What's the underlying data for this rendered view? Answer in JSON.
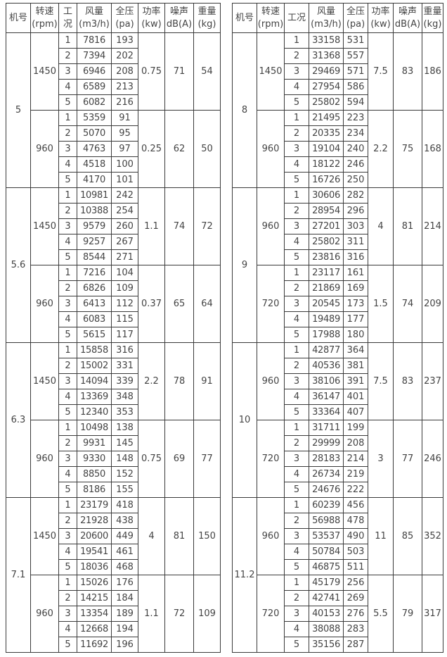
{
  "tables": [
    {
      "headers": [
        [
          "机号"
        ],
        [
          "转速",
          "(rpm)"
        ],
        [
          "工",
          "况"
        ],
        [
          "风量",
          "(m3/h)"
        ],
        [
          "全压",
          "(pa)"
        ],
        [
          "功率",
          "(kw)"
        ],
        [
          "噪声",
          "dB(A)"
        ],
        [
          "重量",
          "(kg)"
        ]
      ],
      "models": [
        {
          "model": "5",
          "speeds": [
            {
              "rpm": "1450",
              "power": "0.75",
              "noise": "71",
              "weight": "54",
              "points": [
                [
                  "1",
                  "7816",
                  "193"
                ],
                [
                  "2",
                  "7394",
                  "202"
                ],
                [
                  "3",
                  "6946",
                  "208"
                ],
                [
                  "4",
                  "6589",
                  "213"
                ],
                [
                  "5",
                  "6082",
                  "216"
                ]
              ]
            },
            {
              "rpm": "960",
              "power": "0.25",
              "noise": "62",
              "weight": "50",
              "points": [
                [
                  "1",
                  "5359",
                  "91"
                ],
                [
                  "2",
                  "5070",
                  "95"
                ],
                [
                  "3",
                  "4763",
                  "97"
                ],
                [
                  "4",
                  "4518",
                  "100"
                ],
                [
                  "5",
                  "4170",
                  "101"
                ]
              ]
            }
          ]
        },
        {
          "model": "5.6",
          "speeds": [
            {
              "rpm": "1450",
              "power": "1.1",
              "noise": "74",
              "weight": "72",
              "points": [
                [
                  "1",
                  "10981",
                  "242"
                ],
                [
                  "2",
                  "10388",
                  "254"
                ],
                [
                  "3",
                  "9579",
                  "260"
                ],
                [
                  "4",
                  "9257",
                  "267"
                ],
                [
                  "5",
                  "8544",
                  "271"
                ]
              ]
            },
            {
              "rpm": "960",
              "power": "0.37",
              "noise": "65",
              "weight": "64",
              "points": [
                [
                  "1",
                  "7216",
                  "104"
                ],
                [
                  "2",
                  "6826",
                  "109"
                ],
                [
                  "3",
                  "6413",
                  "112"
                ],
                [
                  "4",
                  "6083",
                  "115"
                ],
                [
                  "5",
                  "5615",
                  "117"
                ]
              ]
            }
          ]
        },
        {
          "model": "6.3",
          "speeds": [
            {
              "rpm": "1450",
              "power": "2.2",
              "noise": "78",
              "weight": "91",
              "points": [
                [
                  "1",
                  "15858",
                  "316"
                ],
                [
                  "2",
                  "15002",
                  "331"
                ],
                [
                  "3",
                  "14094",
                  "339"
                ],
                [
                  "4",
                  "13369",
                  "348"
                ],
                [
                  "5",
                  "12340",
                  "353"
                ]
              ]
            },
            {
              "rpm": "960",
              "power": "0.75",
              "noise": "69",
              "weight": "77",
              "points": [
                [
                  "1",
                  "10498",
                  "138"
                ],
                [
                  "2",
                  "9931",
                  "145"
                ],
                [
                  "3",
                  "9330",
                  "148"
                ],
                [
                  "4",
                  "8850",
                  "152"
                ],
                [
                  "5",
                  "8186",
                  "155"
                ]
              ]
            }
          ]
        },
        {
          "model": "7.1",
          "speeds": [
            {
              "rpm": "1450",
              "power": "4",
              "noise": "81",
              "weight": "150",
              "points": [
                [
                  "1",
                  "23179",
                  "418"
                ],
                [
                  "2",
                  "21928",
                  "438"
                ],
                [
                  "3",
                  "20600",
                  "449"
                ],
                [
                  "4",
                  "19541",
                  "461"
                ],
                [
                  "5",
                  "18036",
                  "468"
                ]
              ]
            },
            {
              "rpm": "960",
              "power": "1.1",
              "noise": "72",
              "weight": "109",
              "points": [
                [
                  "1",
                  "15026",
                  "176"
                ],
                [
                  "2",
                  "14215",
                  "184"
                ],
                [
                  "3",
                  "13354",
                  "189"
                ],
                [
                  "4",
                  "12668",
                  "194"
                ],
                [
                  "5",
                  "11692",
                  "196"
                ]
              ]
            }
          ]
        }
      ]
    },
    {
      "headers": [
        [
          "机号"
        ],
        [
          "转速",
          "(rpm)"
        ],
        [
          "工况"
        ],
        [
          "风量",
          "(m3/h)"
        ],
        [
          "全压",
          "(pa)"
        ],
        [
          "功率",
          "(kw)"
        ],
        [
          "噪声",
          "dB(A)"
        ],
        [
          "重量",
          "(kg)"
        ]
      ],
      "models": [
        {
          "model": "8",
          "speeds": [
            {
              "rpm": "1450",
              "power": "7.5",
              "noise": "83",
              "weight": "186",
              "points": [
                [
                  "1",
                  "33158",
                  "531"
                ],
                [
                  "2",
                  "31368",
                  "557"
                ],
                [
                  "3",
                  "29469",
                  "571"
                ],
                [
                  "4",
                  "27954",
                  "586"
                ],
                [
                  "5",
                  "25802",
                  "594"
                ]
              ]
            },
            {
              "rpm": "960",
              "power": "2.2",
              "noise": "75",
              "weight": "168",
              "points": [
                [
                  "1",
                  "21495",
                  "223"
                ],
                [
                  "2",
                  "20335",
                  "234"
                ],
                [
                  "3",
                  "19104",
                  "240"
                ],
                [
                  "4",
                  "18122",
                  "246"
                ],
                [
                  "5",
                  "16726",
                  "250"
                ]
              ]
            }
          ]
        },
        {
          "model": "9",
          "speeds": [
            {
              "rpm": "960",
              "power": "4",
              "noise": "81",
              "weight": "214",
              "points": [
                [
                  "1",
                  "30606",
                  "282"
                ],
                [
                  "2",
                  "28954",
                  "296"
                ],
                [
                  "3",
                  "27201",
                  "303"
                ],
                [
                  "4",
                  "25802",
                  "311"
                ],
                [
                  "5",
                  "23816",
                  "316"
                ]
              ]
            },
            {
              "rpm": "720",
              "power": "1.5",
              "noise": "74",
              "weight": "209",
              "points": [
                [
                  "1",
                  "23117",
                  "161"
                ],
                [
                  "2",
                  "21869",
                  "169"
                ],
                [
                  "3",
                  "20545",
                  "173"
                ],
                [
                  "4",
                  "19489",
                  "177"
                ],
                [
                  "5",
                  "17988",
                  "180"
                ]
              ]
            }
          ]
        },
        {
          "model": "10",
          "speeds": [
            {
              "rpm": "960",
              "power": "7.5",
              "noise": "83",
              "weight": "237",
              "points": [
                [
                  "1",
                  "42877",
                  "364"
                ],
                [
                  "2",
                  "40536",
                  "381"
                ],
                [
                  "3",
                  "38106",
                  "391"
                ],
                [
                  "4",
                  "36147",
                  "401"
                ],
                [
                  "5",
                  "33364",
                  "407"
                ]
              ]
            },
            {
              "rpm": "720",
              "power": "3",
              "noise": "77",
              "weight": "246",
              "points": [
                [
                  "1",
                  "31711",
                  "199"
                ],
                [
                  "2",
                  "29999",
                  "208"
                ],
                [
                  "3",
                  "28183",
                  "214"
                ],
                [
                  "4",
                  "26734",
                  "219"
                ],
                [
                  "5",
                  "24676",
                  "222"
                ]
              ]
            }
          ]
        },
        {
          "model": "11.2",
          "speeds": [
            {
              "rpm": "960",
              "power": "11",
              "noise": "85",
              "weight": "352",
              "points": [
                [
                  "1",
                  "60239",
                  "456"
                ],
                [
                  "2",
                  "56988",
                  "478"
                ],
                [
                  "3",
                  "53537",
                  "490"
                ],
                [
                  "4",
                  "50784",
                  "503"
                ],
                [
                  "5",
                  "46875",
                  "511"
                ]
              ]
            },
            {
              "rpm": "720",
              "power": "5.5",
              "noise": "79",
              "weight": "317",
              "points": [
                [
                  "1",
                  "45179",
                  "256"
                ],
                [
                  "2",
                  "42741",
                  "269"
                ],
                [
                  "3",
                  "40153",
                  "276"
                ],
                [
                  "4",
                  "38088",
                  "283"
                ],
                [
                  "5",
                  "35156",
                  "287"
                ]
              ]
            }
          ]
        }
      ]
    }
  ]
}
